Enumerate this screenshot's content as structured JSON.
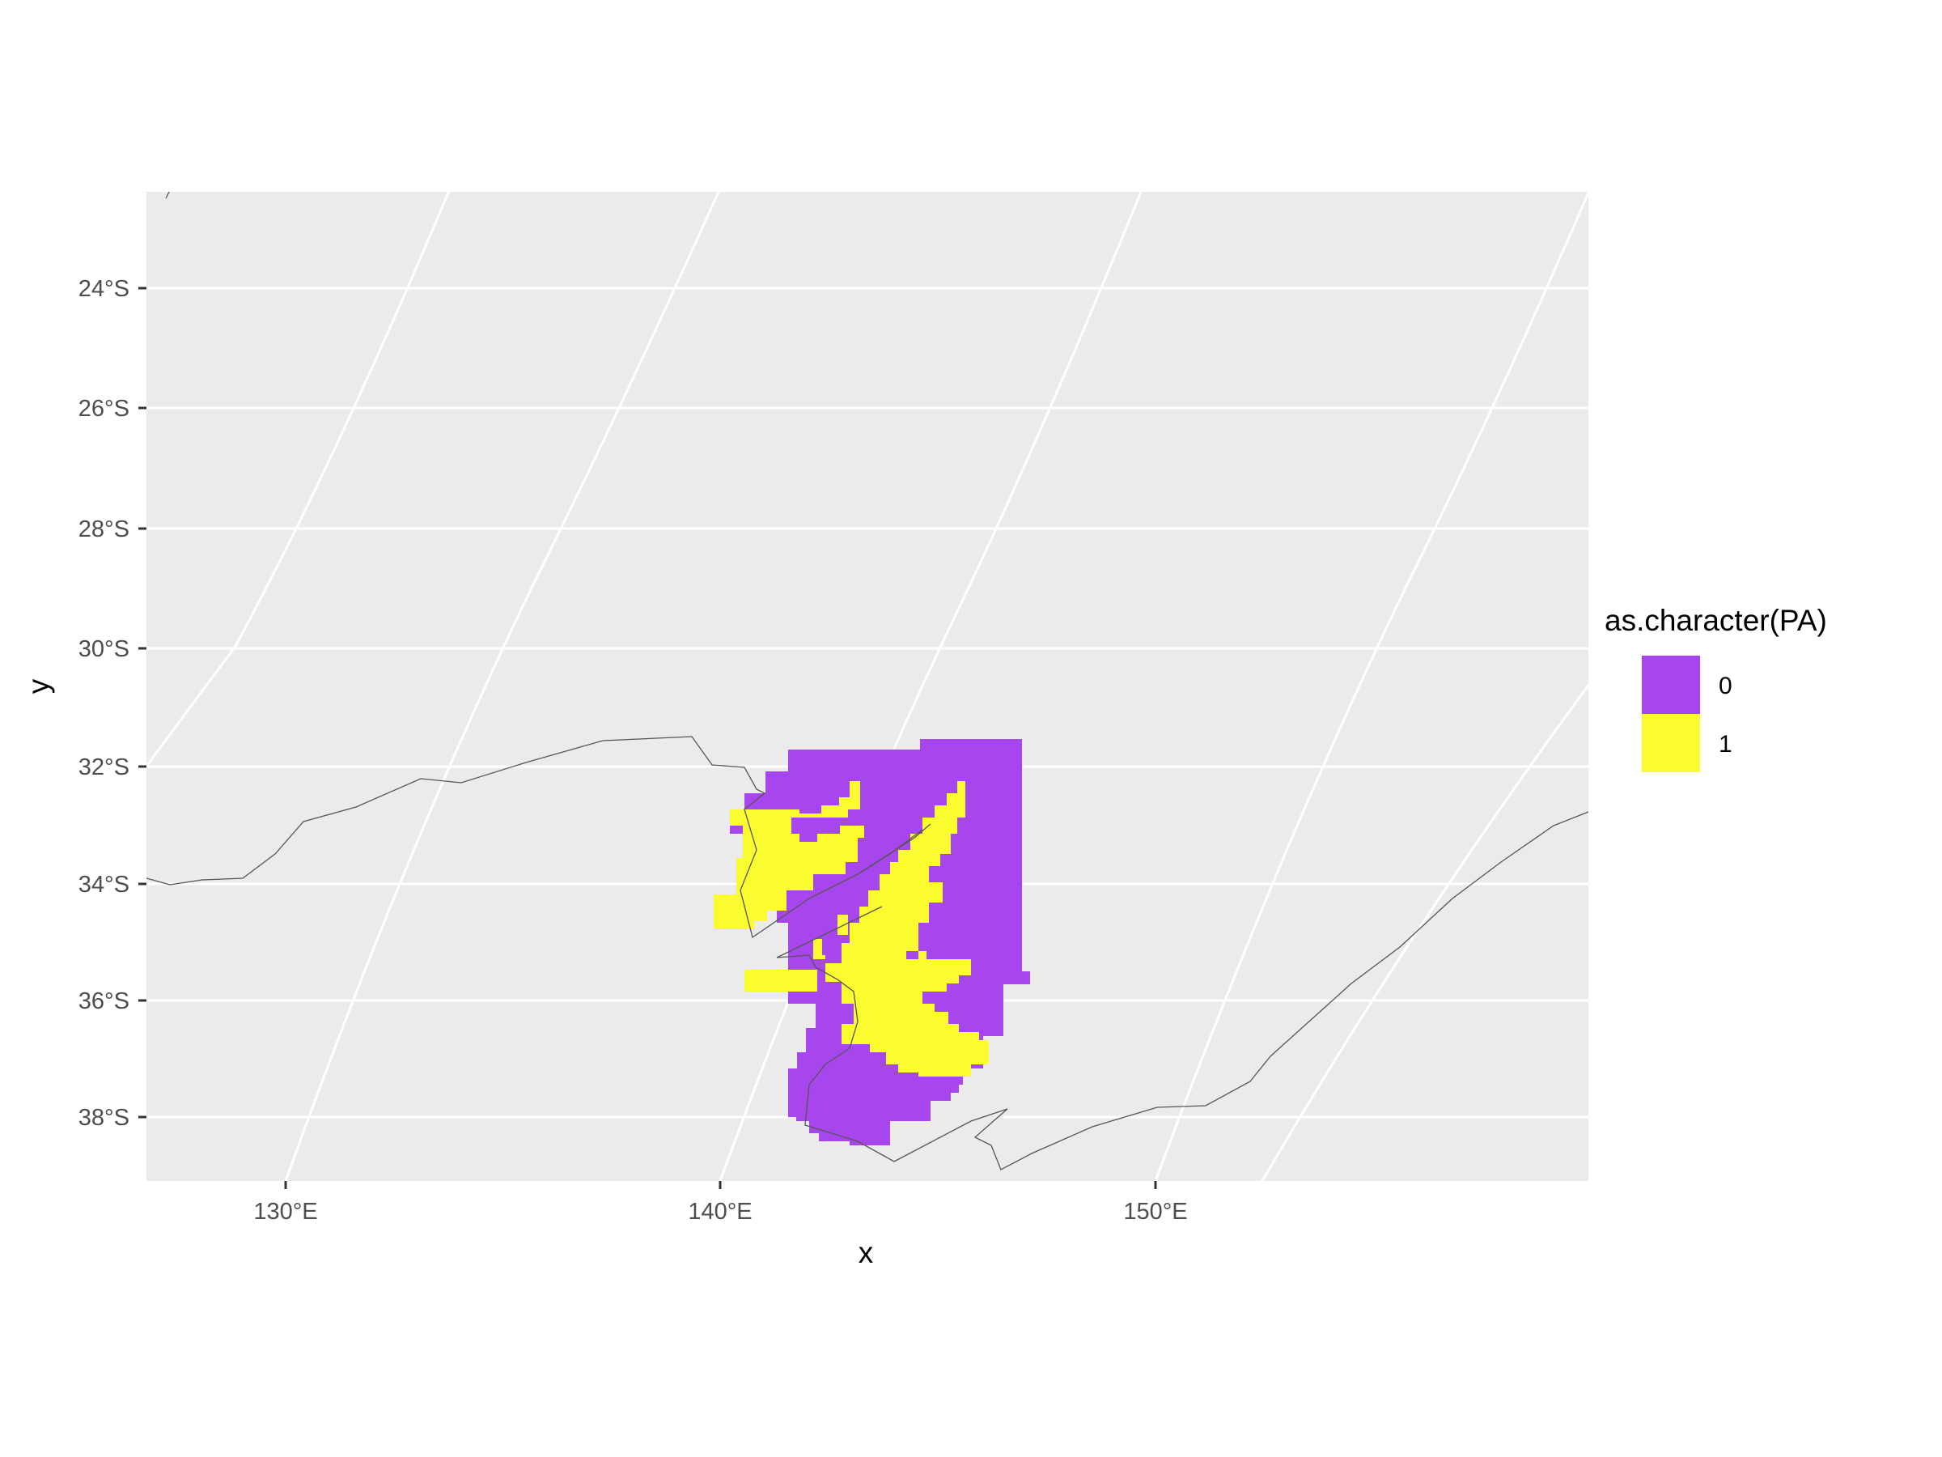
{
  "chart_data": {
    "type": "heatmap",
    "title": "",
    "xlabel": "x",
    "ylabel": "y",
    "x_tick_labels": [
      "130°E",
      "140°E",
      "150°E"
    ],
    "y_tick_labels": [
      "24°S",
      "26°S",
      "28°S",
      "30°S",
      "32°S",
      "34°S",
      "36°S",
      "38°S"
    ],
    "legend": {
      "title": "as.character(PA)",
      "entries": [
        {
          "label": "0",
          "color": "#A846EE"
        },
        {
          "label": "1",
          "color": "#FBFC2F"
        }
      ],
      "placement": "right"
    },
    "panel_background": "#EBEBEB",
    "grid": true,
    "grid_color": "#FFFFFF",
    "outline_color": "#555555"
  }
}
